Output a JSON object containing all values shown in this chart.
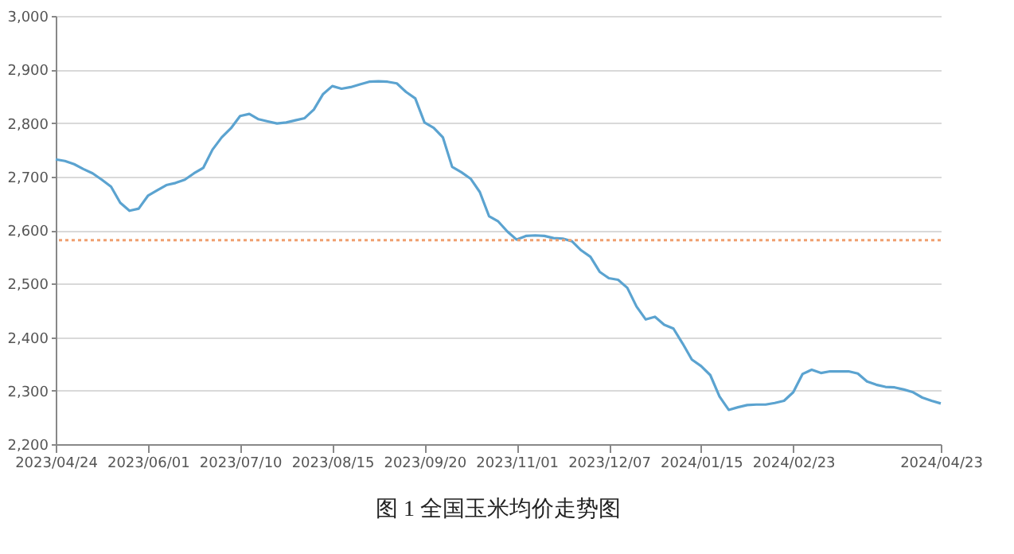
{
  "chart_data": {
    "type": "line",
    "title": "图 1  全国玉米均价走势图",
    "categories": [
      "2023/04/24",
      null,
      null,
      null,
      null,
      null,
      null,
      null,
      null,
      null,
      "2023/06/01",
      null,
      null,
      null,
      null,
      null,
      null,
      null,
      null,
      null,
      "2023/07/10",
      null,
      null,
      null,
      null,
      null,
      null,
      null,
      null,
      null,
      "2023/08/15",
      null,
      null,
      null,
      null,
      null,
      null,
      null,
      null,
      null,
      "2023/09/20",
      null,
      null,
      null,
      null,
      null,
      null,
      null,
      null,
      null,
      "2023/11/01",
      null,
      null,
      null,
      null,
      null,
      null,
      null,
      null,
      null,
      "2023/12/07",
      null,
      null,
      null,
      null,
      null,
      null,
      null,
      null,
      null,
      "2024/01/15",
      null,
      null,
      null,
      null,
      null,
      null,
      null,
      null,
      null,
      "2024/02/23",
      null,
      null,
      null,
      null,
      null,
      null,
      null,
      null,
      null,
      null,
      null,
      null,
      null,
      null,
      null,
      "2024/04/23"
    ],
    "series": [
      {
        "color": "#5ba3d0",
        "values": [
          2732,
          2729,
          2723,
          2714,
          2706,
          2694,
          2681,
          2651,
          2636,
          2640,
          2664,
          2674,
          2684,
          2688,
          2694,
          2706,
          2716,
          2750,
          2773,
          2790,
          2813,
          2817,
          2807,
          2803,
          2799,
          2801,
          2805,
          2809,
          2825,
          2854,
          2869,
          2864,
          2867,
          2872,
          2877,
          2878,
          2877,
          2874,
          2858,
          2846,
          2801,
          2791,
          2773,
          2718,
          2708,
          2696,
          2671,
          2626,
          2616,
          2597,
          2582,
          2589,
          2590,
          2589,
          2585,
          2584,
          2579,
          2562,
          2550,
          2522,
          2510,
          2507,
          2492,
          2457,
          2433,
          2438,
          2423,
          2416,
          2388,
          2358,
          2346,
          2329,
          2289,
          2264,
          2269,
          2273,
          2274,
          2274,
          2277,
          2281,
          2297,
          2331,
          2339,
          2333,
          2336,
          2336,
          2336,
          2332,
          2317,
          2311,
          2307,
          2306,
          2302,
          2297,
          2287,
          2281,
          2276
        ]
      }
    ],
    "ylim": [
      2200,
      3000
    ],
    "yticks": [
      {
        "value": 2200,
        "label": "2,200"
      },
      {
        "value": 2300,
        "label": "2,300"
      },
      {
        "value": 2400,
        "label": "2,400"
      },
      {
        "value": 2500,
        "label": "2,500"
      },
      {
        "value": 2600,
        "label": "2,600"
      },
      {
        "value": 2700,
        "label": "2,700"
      },
      {
        "value": 2800,
        "label": "2,800"
      },
      {
        "value": 2900,
        "label": "2,900"
      },
      {
        "value": 3000,
        "label": "3,000"
      }
    ],
    "ref_lines": [
      {
        "axis": "y",
        "value": 2581,
        "color": "#f0a070",
        "line_style": "dotted"
      }
    ],
    "grid": "y",
    "marker": "none",
    "line_style": "solid"
  }
}
